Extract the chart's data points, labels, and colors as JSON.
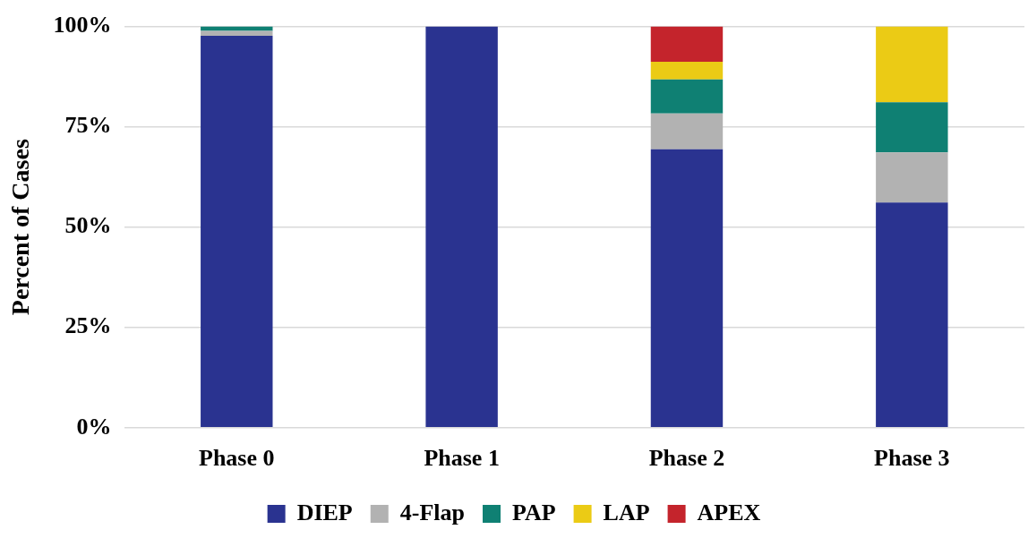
{
  "chart_data": {
    "type": "bar",
    "ylabel": "Percent of Cases",
    "categories": [
      "Phase 0",
      "Phase 1",
      "Phase 2",
      "Phase 3"
    ],
    "stacked": true,
    "series": [
      {
        "name": "DIEP",
        "color": "#2a3390",
        "values": [
          97.7,
          100,
          69.4,
          56.1
        ]
      },
      {
        "name": "4-Flap",
        "color": "#b2b2b2",
        "values": [
          1.2,
          0,
          8.9,
          12.5
        ]
      },
      {
        "name": "PAP",
        "color": "#0f8073",
        "values": [
          1.1,
          0,
          8.5,
          12.5
        ]
      },
      {
        "name": "LAP",
        "color": "#ebcb15",
        "values": [
          0,
          0,
          4.4,
          18.9
        ]
      },
      {
        "name": "APEX",
        "color": "#c4242c",
        "values": [
          0,
          0,
          8.8,
          0
        ]
      }
    ],
    "ylim": [
      0,
      100
    ],
    "yticks": [
      {
        "value": 0,
        "label": "0%"
      },
      {
        "value": 25,
        "label": "25%"
      },
      {
        "value": 50,
        "label": "50%"
      },
      {
        "value": 75,
        "label": "75%"
      },
      {
        "value": 100,
        "label": "100%"
      }
    ],
    "grid": "y",
    "legend": "bottom"
  }
}
